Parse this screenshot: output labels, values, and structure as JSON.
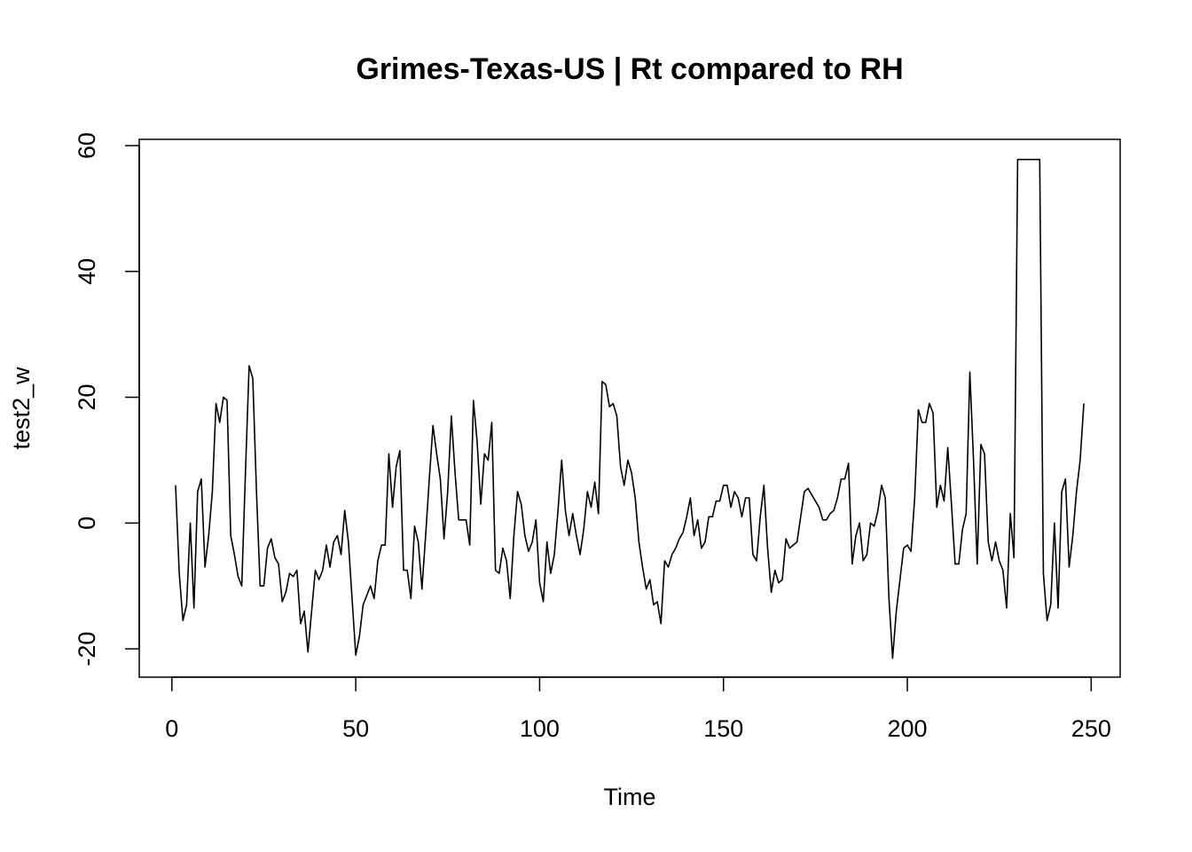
{
  "chart_data": {
    "type": "line",
    "title": "Grimes-Texas-US | Rt compared to RH",
    "xlabel": "Time",
    "ylabel": "test2_w",
    "x": [
      1,
      2,
      3,
      4,
      5,
      6,
      7,
      8,
      9,
      10,
      11,
      12,
      13,
      14,
      15,
      16,
      17,
      18,
      19,
      20,
      21,
      22,
      23,
      24,
      25,
      26,
      27,
      28,
      29,
      30,
      31,
      32,
      33,
      34,
      35,
      36,
      37,
      38,
      39,
      40,
      41,
      42,
      43,
      44,
      45,
      46,
      47,
      48,
      49,
      50,
      51,
      52,
      53,
      54,
      55,
      56,
      57,
      58,
      59,
      60,
      61,
      62,
      63,
      64,
      65,
      66,
      67,
      68,
      69,
      70,
      71,
      72,
      73,
      74,
      75,
      76,
      77,
      78,
      79,
      80,
      81,
      82,
      83,
      84,
      85,
      86,
      87,
      88,
      89,
      90,
      91,
      92,
      93,
      94,
      95,
      96,
      97,
      98,
      99,
      100,
      101,
      102,
      103,
      104,
      105,
      106,
      107,
      108,
      109,
      110,
      111,
      112,
      113,
      114,
      115,
      116,
      117,
      118,
      119,
      120,
      121,
      122,
      123,
      124,
      125,
      126,
      127,
      128,
      129,
      130,
      131,
      132,
      133,
      134,
      135,
      136,
      137,
      138,
      139,
      140,
      141,
      142,
      143,
      144,
      145,
      146,
      147,
      148,
      149,
      150,
      151,
      152,
      153,
      154,
      155,
      156,
      157,
      158,
      159,
      160,
      161,
      162,
      163,
      164,
      165,
      166,
      167,
      168,
      169,
      170,
      171,
      172,
      173,
      174,
      175,
      176,
      177,
      178,
      179,
      180,
      181,
      182,
      183,
      184,
      185,
      186,
      187,
      188,
      189,
      190,
      191,
      192,
      193,
      194,
      195,
      196,
      197,
      198,
      199,
      200,
      201,
      202,
      203,
      204,
      205,
      206,
      207,
      208,
      209,
      210,
      211,
      212,
      213,
      214,
      215,
      216,
      217,
      218,
      219,
      220,
      221,
      222,
      223,
      224,
      225,
      226,
      227,
      228,
      229,
      230,
      231,
      232,
      233,
      234,
      235,
      236,
      237,
      238,
      239,
      240,
      241,
      242,
      243,
      244,
      245,
      246,
      247,
      248
    ],
    "series": [
      {
        "color": "#000000",
        "values": [
          6,
          -8,
          -15.5,
          -13,
          0,
          -13.5,
          5,
          7,
          -7,
          -2,
          5,
          19,
          16,
          20,
          19.5,
          -2,
          -5,
          -8.5,
          -10,
          8,
          25,
          23,
          5,
          -10,
          -10,
          -4,
          -2.5,
          -5.5,
          -6.5,
          -12.5,
          -11,
          -8,
          -8.5,
          -7.5,
          -16,
          -14,
          -20.5,
          -14,
          -7.5,
          -9,
          -7.5,
          -3.5,
          -7,
          -3,
          -2,
          -5,
          2,
          -3,
          -12,
          -21,
          -18,
          -13,
          -11.5,
          -10,
          -12,
          -6,
          -3.5,
          -3.5,
          11,
          2.5,
          9,
          11.5,
          -7.5,
          -7.5,
          -12,
          -0.5,
          -3,
          -10.5,
          -2,
          7,
          15.5,
          11,
          7,
          -2.5,
          5,
          17,
          8,
          0.5,
          0.5,
          0.5,
          -3.5,
          19.5,
          13,
          3,
          11,
          10,
          16,
          -7.5,
          -8,
          -4,
          -6,
          -12,
          -2,
          5,
          3,
          -2,
          -4.5,
          -3,
          0.5,
          -9.5,
          -12.5,
          -3,
          -8,
          -5,
          2,
          10,
          2,
          -2,
          1.5,
          -2,
          -5,
          -1,
          5,
          2.5,
          6.5,
          1.5,
          22.5,
          22,
          18.5,
          19,
          17,
          9,
          6,
          10,
          8,
          4,
          -3,
          -7,
          -10.5,
          -9,
          -13,
          -12.5,
          -16,
          -6,
          -7,
          -5,
          -4,
          -2.5,
          -1.5,
          1,
          4,
          -2,
          0.5,
          -4,
          -3,
          1,
          1,
          3.5,
          3.5,
          6,
          6,
          2.5,
          5,
          4,
          1,
          4,
          4,
          -5,
          -6,
          1,
          6,
          -4,
          -11,
          -7.5,
          -9.5,
          -9,
          -2.5,
          -4,
          -3.5,
          -3,
          1,
          5,
          5.5,
          4.5,
          3.5,
          2.5,
          0.5,
          0.5,
          1.5,
          2,
          4,
          7,
          7,
          9.5,
          -6.5,
          -2,
          0,
          -6,
          -5,
          0,
          -0.5,
          2,
          6,
          4,
          -12,
          -21.5,
          -14,
          -9,
          -4,
          -3.5,
          -4.5,
          4,
          18,
          16,
          16,
          19,
          17.5,
          2.5,
          6,
          3.5,
          12,
          3,
          -6.5,
          -6.5,
          -1,
          1.5,
          24,
          10,
          -6.5,
          12.5,
          11,
          -3,
          -6,
          -3,
          -6,
          -7.5,
          -13.5,
          1.5,
          -5.5,
          57.8,
          57.8,
          57.8,
          57.8,
          57.8,
          57.8,
          57.8,
          -8,
          -15.5,
          -13,
          0,
          -13.5,
          5,
          7,
          -7,
          -2,
          5,
          10,
          19
        ]
      }
    ],
    "xlim": [
      -8.88,
      257.88
    ],
    "xticks": [
      0,
      50,
      100,
      150,
      200,
      250
    ],
    "ylim": [
      -24.5,
      61
    ],
    "yticks": [
      -20,
      0,
      20,
      40,
      60
    ]
  }
}
